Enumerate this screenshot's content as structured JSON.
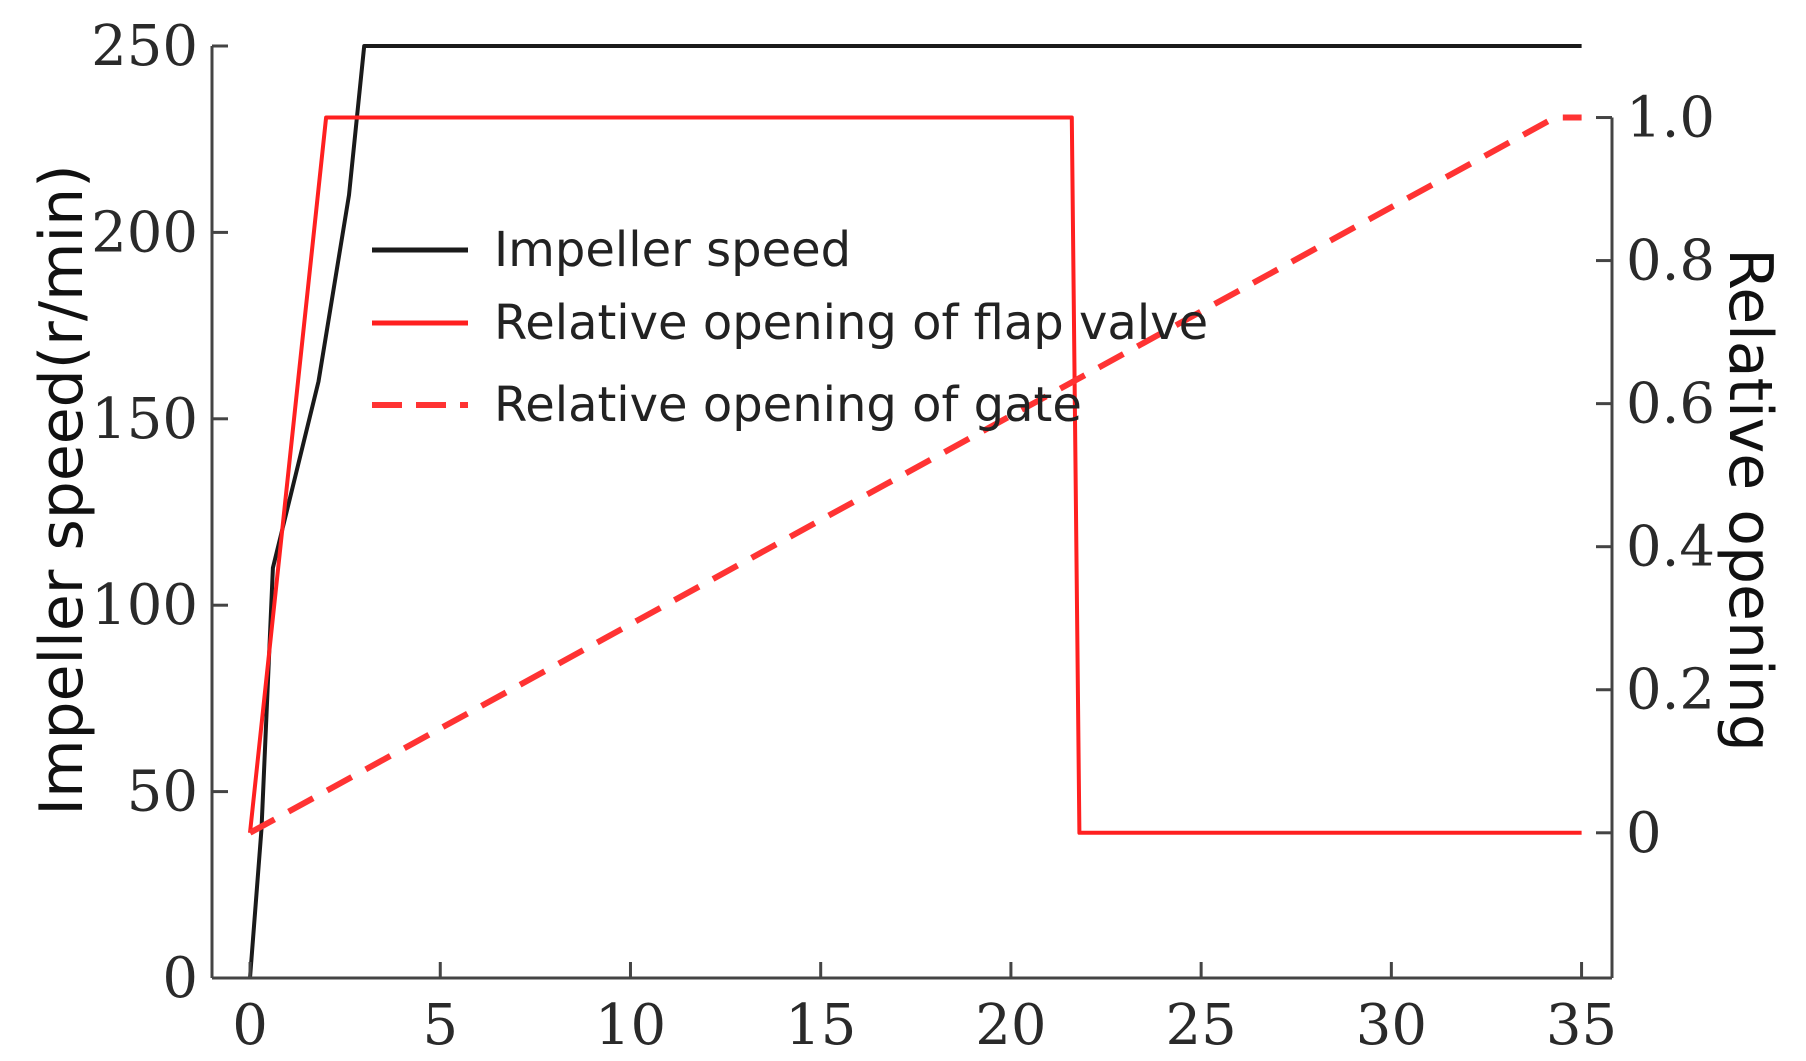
{
  "chart_data": {
    "type": "line",
    "title": "",
    "xlabel": "",
    "ylabel": "Impeller speed(r/min)",
    "y2label": "Relative opening",
    "xlim": [
      -1,
      35.8
    ],
    "ylim": [
      0,
      250
    ],
    "y2lim": [
      -0.203,
      1.1
    ],
    "x_ticks": [
      0,
      5,
      10,
      15,
      20,
      25,
      30,
      35
    ],
    "y_ticks": [
      0,
      50,
      100,
      150,
      200,
      250
    ],
    "y2_ticks": [
      0,
      0.2,
      0.4,
      0.6,
      0.8,
      1.0
    ],
    "y2_tick_labels": [
      "0",
      "0.2",
      "0.4",
      "0.6",
      "0.8",
      "1.0"
    ],
    "grid": false,
    "legend_position": "top-left",
    "series": [
      {
        "name": "Impeller speed",
        "axis": "left",
        "color": "#1a1a1a",
        "style": "solid",
        "points": [
          [
            0,
            0
          ],
          [
            0.3,
            40
          ],
          [
            0.6,
            110
          ],
          [
            1.8,
            160
          ],
          [
            2.6,
            210
          ],
          [
            3.0,
            250
          ],
          [
            35,
            250
          ]
        ]
      },
      {
        "name": "Relative opening of flap valve",
        "axis": "right",
        "color": "#ff2020",
        "style": "solid",
        "points": [
          [
            0,
            0
          ],
          [
            2.0,
            1.0
          ],
          [
            21.6,
            1.0
          ],
          [
            21.8,
            0
          ],
          [
            35,
            0
          ]
        ]
      },
      {
        "name": "Relative opening of gate",
        "axis": "right",
        "color": "#ff3333",
        "style": "dashed",
        "points": [
          [
            0,
            0
          ],
          [
            34.3,
            1.0
          ],
          [
            35,
            1.0
          ]
        ]
      }
    ]
  }
}
